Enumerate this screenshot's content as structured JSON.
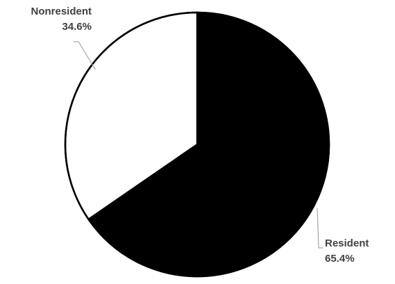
{
  "chart_data": {
    "type": "pie",
    "title": "",
    "slices": [
      {
        "name": "Resident",
        "value": 65.4,
        "value_label": "65.4%",
        "color": "#000000"
      },
      {
        "name": "Nonresident",
        "value": 34.6,
        "value_label": "34.6%",
        "color": "#ffffff"
      }
    ],
    "start_angle_deg": 0,
    "direction": "clockwise",
    "outline_color": "#000000",
    "leader_line_color": "#a6a6a6",
    "label_color": "#404040",
    "legend": "none"
  }
}
